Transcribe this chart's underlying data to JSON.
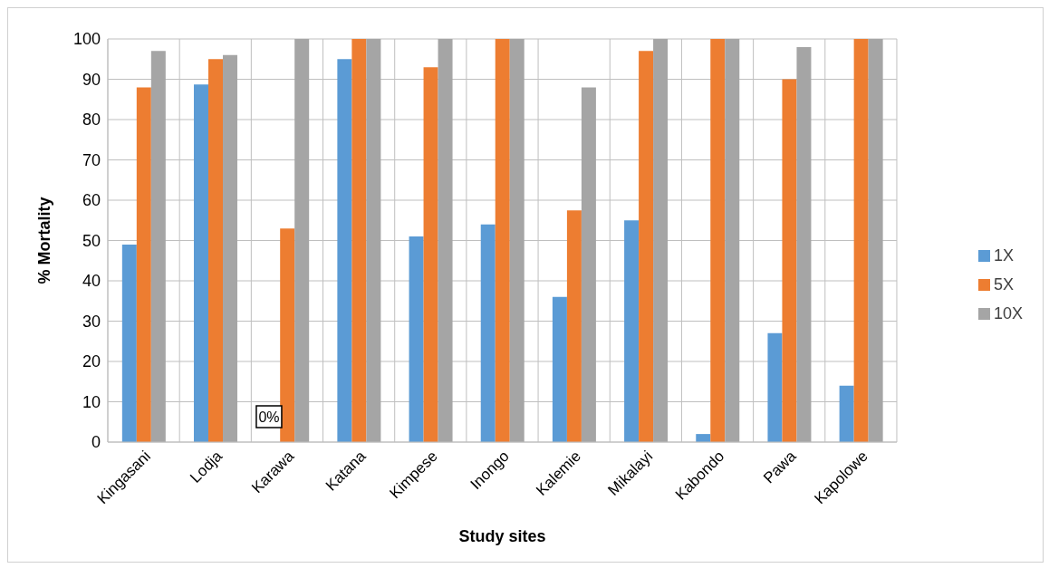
{
  "chart_data": {
    "type": "bar",
    "xlabel": "Study sites",
    "ylabel": "% Mortality",
    "categories": [
      "Kingasani",
      "Lodja",
      "Karawa",
      "Katana",
      "Kimpese",
      "Inongo",
      "Kalemie",
      "Mikalayi",
      "Kabondo",
      "Pawa",
      "Kapolowe"
    ],
    "series": [
      {
        "name": "1X",
        "color": "#5b9bd5",
        "values": [
          49,
          88.7,
          0,
          95,
          51,
          54,
          36,
          55,
          2,
          27,
          14
        ]
      },
      {
        "name": "5X",
        "color": "#ed7d31",
        "values": [
          88,
          95,
          53,
          100,
          93,
          100,
          57.5,
          97,
          100,
          90,
          100
        ]
      },
      {
        "name": "10X",
        "color": "#a5a5a5",
        "values": [
          97,
          96,
          100,
          100,
          100,
          100,
          88,
          100,
          100,
          98,
          100
        ]
      }
    ],
    "ylim": [
      0,
      100
    ],
    "yticks": [
      0,
      10,
      20,
      30,
      40,
      50,
      60,
      70,
      80,
      90,
      100
    ],
    "annotations": [
      {
        "text": "0%",
        "x": "Karawa",
        "y": 0
      }
    ],
    "grid": true,
    "legend": "right"
  }
}
